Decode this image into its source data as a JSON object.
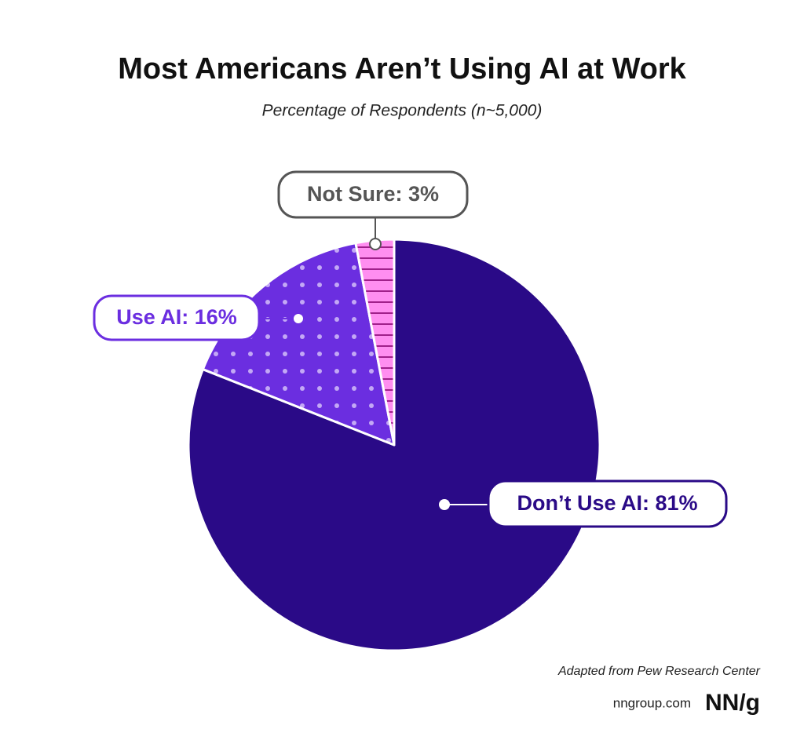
{
  "chart_data": {
    "type": "pie",
    "title": "Most Americans Aren’t Using AI at Work",
    "subtitle": "Percentage of Respondents (n~5,000)",
    "values": [
      81,
      16,
      3
    ],
    "value_labels": [
      "Don’t Use AI: 81%",
      "Use AI: 16%",
      "Not Sure: 3%"
    ],
    "colors": [
      "#2a0a87",
      "#6b2ee0",
      "#ff8ef0"
    ],
    "label_colors": [
      "#2a0a87",
      "#6b2ee0",
      "#555555"
    ],
    "source": "Adapted from Pew Research Center",
    "website": "nngroup.com",
    "logo": "NN/g"
  }
}
